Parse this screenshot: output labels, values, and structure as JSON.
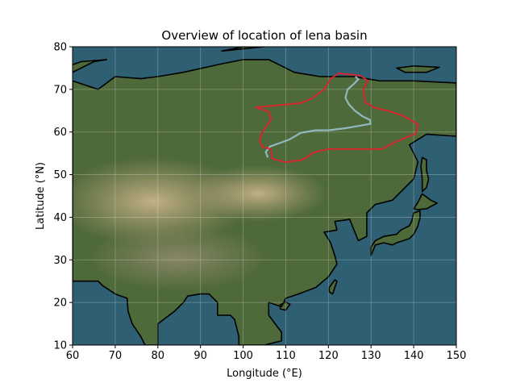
{
  "title": "Overview of location of lena basin",
  "xlabel": "Longitude (°E)",
  "ylabel": "Latitude (°N)",
  "chart_data": {
    "type": "map",
    "title": "Overview of location of lena basin",
    "xlabel": "Longitude (°E)",
    "ylabel": "Latitude (°N)",
    "xlim": [
      60,
      150
    ],
    "ylim": [
      10,
      80
    ],
    "xticks": [
      60,
      70,
      80,
      90,
      100,
      110,
      120,
      130,
      140,
      150
    ],
    "yticks": [
      10,
      20,
      30,
      40,
      50,
      60,
      70,
      80
    ],
    "grid": true,
    "colors": {
      "ocean": "#2f5f72",
      "land": "#4f6a3a",
      "desert": "#b9a27a",
      "coastline": "#000000",
      "basin_boundary": "#e0202a",
      "river": "#9ec5d6"
    },
    "basin_boundary": [
      [
        122.5,
        73.8
      ],
      [
        127.5,
        73.2
      ],
      [
        129.3,
        72.0
      ],
      [
        128.2,
        70.2
      ],
      [
        128.6,
        67.0
      ],
      [
        130.6,
        65.8
      ],
      [
        134.5,
        64.8
      ],
      [
        137.5,
        63.8
      ],
      [
        141.0,
        61.8
      ],
      [
        140.5,
        59.6
      ],
      [
        136.0,
        57.8
      ],
      [
        132.5,
        56.0
      ],
      [
        125.0,
        56.0
      ],
      [
        120.0,
        56.0
      ],
      [
        116.5,
        55.2
      ],
      [
        114.0,
        53.5
      ],
      [
        110.0,
        52.9
      ],
      [
        106.8,
        53.8
      ],
      [
        106.5,
        56.0
      ],
      [
        104.5,
        56.5
      ],
      [
        103.8,
        58.0
      ],
      [
        104.5,
        60.0
      ],
      [
        106.6,
        63.0
      ],
      [
        106.0,
        64.8
      ],
      [
        103.0,
        65.8
      ],
      [
        107.6,
        66.2
      ],
      [
        113.5,
        66.8
      ],
      [
        116.0,
        67.8
      ],
      [
        119.0,
        70.0
      ],
      [
        120.5,
        72.5
      ],
      [
        122.5,
        73.8
      ]
    ],
    "river": [
      [
        105.8,
        54.0
      ],
      [
        105.3,
        55.3
      ],
      [
        106.3,
        56.6
      ],
      [
        108.0,
        57.2
      ],
      [
        110.8,
        58.2
      ],
      [
        113.5,
        59.8
      ],
      [
        117.0,
        60.4
      ],
      [
        120.0,
        60.4
      ],
      [
        124.0,
        60.9
      ],
      [
        127.5,
        61.5
      ],
      [
        129.8,
        61.9
      ],
      [
        129.8,
        62.8
      ],
      [
        128.0,
        63.7
      ],
      [
        126.2,
        65.0
      ],
      [
        124.8,
        66.5
      ],
      [
        124.0,
        68.0
      ],
      [
        124.5,
        70.0
      ],
      [
        126.2,
        71.5
      ],
      [
        127.0,
        72.4
      ],
      [
        126.3,
        73.0
      ]
    ]
  }
}
